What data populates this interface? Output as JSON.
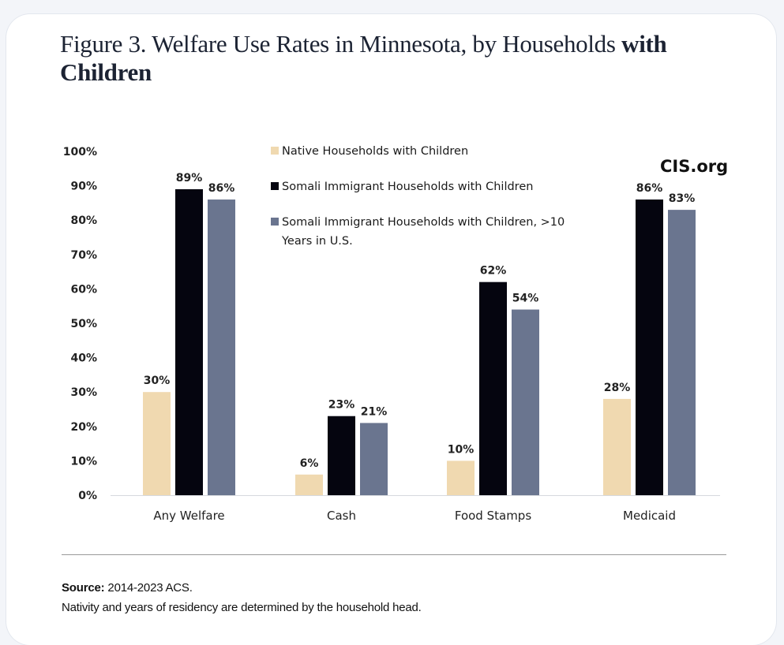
{
  "figure": {
    "title_regular": "Figure 3. Welfare Use Rates in Minnesota, by Households ",
    "title_bold_1": "with",
    "title_bold_2": "Children",
    "brand": "CIS.org",
    "source_label": "Source:",
    "source_text": " 2014-2023 ACS.",
    "note": "Nativity and years of residency are determined by the household head."
  },
  "colors": {
    "native": "#f0d9b0",
    "somali": "#05050f",
    "somali_10yr": "#6a758f"
  },
  "chart_data": {
    "type": "bar",
    "title": "Figure 3. Welfare Use Rates in Minnesota, by Households with Children",
    "xlabel": "",
    "ylabel": "",
    "ylim": [
      0,
      100
    ],
    "yticks": [
      "0%",
      "10%",
      "20%",
      "30%",
      "40%",
      "50%",
      "60%",
      "70%",
      "80%",
      "90%",
      "100%"
    ],
    "categories": [
      "Any Welfare",
      "Cash",
      "Food Stamps",
      "Medicaid"
    ],
    "series": [
      {
        "name": "Native Households with Children",
        "values": [
          30,
          6,
          10,
          28
        ],
        "labels": [
          "30%",
          "6%",
          "10%",
          "28%"
        ]
      },
      {
        "name": "Somali Immigrant Households with Children",
        "values": [
          89,
          23,
          62,
          86
        ],
        "labels": [
          "89%",
          "23%",
          "62%",
          "86%"
        ]
      },
      {
        "name": "Somali Immigrant Households with Children, >10 Years in U.S.",
        "values": [
          86,
          21,
          54,
          83
        ],
        "labels": [
          "86%",
          "21%",
          "54%",
          "83%"
        ]
      }
    ],
    "legend": {
      "placement": "top-center",
      "entries": [
        {
          "lines": [
            "Native Households with Children"
          ]
        },
        {
          "lines": [
            "Somali Immigrant Households with Children"
          ]
        },
        {
          "lines": [
            "Somali Immigrant Households with Children, >10",
            "Years in U.S."
          ]
        }
      ]
    },
    "grid": false
  }
}
